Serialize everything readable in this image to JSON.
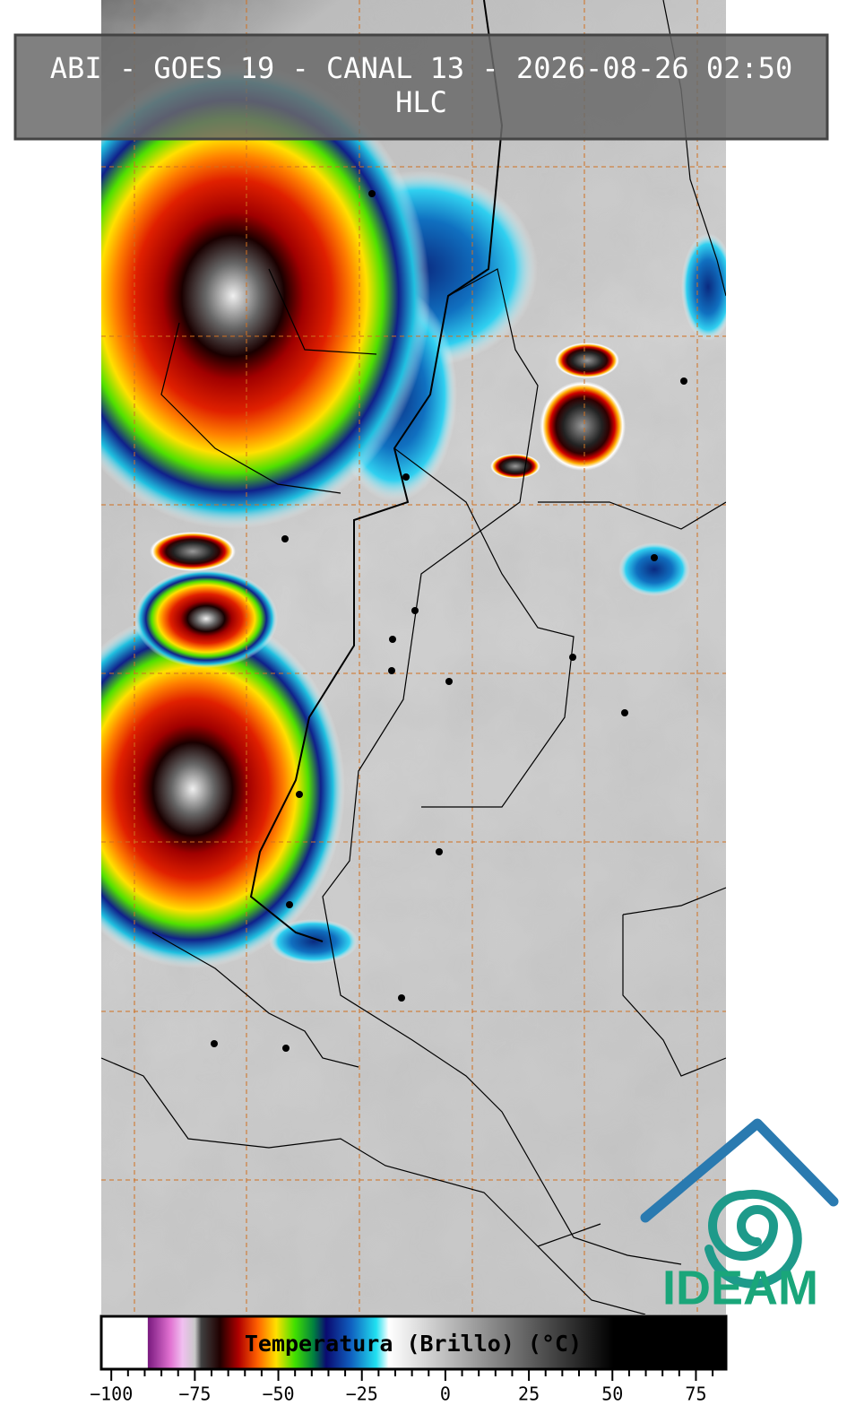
{
  "header": {
    "title": "ABI - GOES 19 - CANAL 13 - 2026-08-26 02:50",
    "subtitle": "HLC"
  },
  "colorbar": {
    "label": "Temperatura (Brillo) (°C)",
    "range": [
      -103,
      84
    ],
    "ticks": [
      {
        "value": -100,
        "label": "−100"
      },
      {
        "value": -75,
        "label": "−75"
      },
      {
        "value": -50,
        "label": "−50"
      },
      {
        "value": -25,
        "label": "−25"
      },
      0,
      25,
      50,
      75
    ]
  },
  "logo": {
    "text": "IDEAM"
  }
}
